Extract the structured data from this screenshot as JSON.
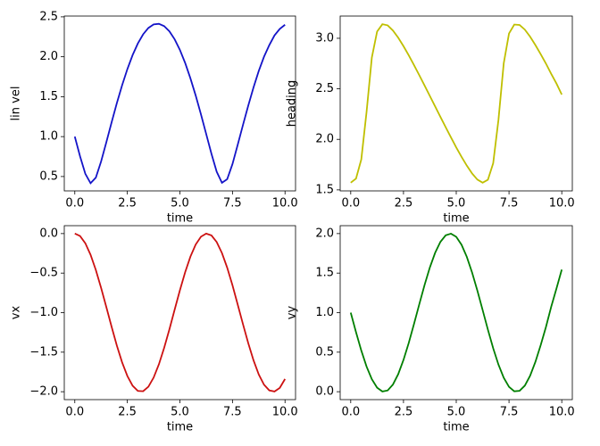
{
  "chart_data": [
    {
      "type": "line",
      "x_label": "time",
      "y_label": "lin vel",
      "color": "#1414c8",
      "x": [
        0,
        0.25,
        0.5,
        0.75,
        1,
        1.25,
        1.5,
        1.75,
        2,
        2.25,
        2.5,
        2.75,
        3,
        3.25,
        3.5,
        3.75,
        4,
        4.25,
        4.5,
        4.75,
        5,
        5.25,
        5.5,
        5.75,
        6,
        6.25,
        6.5,
        6.75,
        7,
        7.25,
        7.5,
        7.75,
        8,
        8.25,
        8.5,
        8.75,
        9,
        9.25,
        9.5,
        9.75,
        10
      ],
      "values": [
        1.0,
        0.753,
        0.535,
        0.416,
        0.486,
        0.687,
        0.929,
        1.178,
        1.419,
        1.643,
        1.845,
        2.021,
        2.167,
        2.281,
        2.361,
        2.405,
        2.413,
        2.384,
        2.319,
        2.219,
        2.086,
        1.922,
        1.73,
        1.515,
        1.28,
        1.033,
        0.785,
        0.56,
        0.422,
        0.467,
        0.656,
        0.898,
        1.146,
        1.387,
        1.615,
        1.822,
        2.0,
        2.145,
        2.268,
        2.349,
        2.401
      ],
      "xlim": [
        -0.5,
        10.5
      ],
      "ylim": [
        0.32,
        2.51
      ],
      "xticks": [
        {
          "value": 0,
          "label": "0.0"
        },
        2.5,
        {
          "value": 5,
          "label": "5.0"
        },
        7.5,
        {
          "value": 10,
          "label": "10.0"
        }
      ],
      "yticks": [
        0.5,
        {
          "value": 1,
          "label": "1.0"
        },
        1.5,
        {
          "value": 2,
          "label": "2.0"
        },
        2.5
      ]
    },
    {
      "type": "line",
      "x_label": "time",
      "y_label": "heading",
      "color": "#bfbf00",
      "x": [
        0,
        0.25,
        0.5,
        0.75,
        1,
        1.25,
        1.5,
        1.75,
        2,
        2.25,
        2.5,
        2.75,
        3,
        3.25,
        3.5,
        3.75,
        4,
        4.25,
        4.5,
        4.75,
        5,
        5.25,
        5.5,
        5.75,
        6,
        6.25,
        6.5,
        6.75,
        7,
        7.25,
        7.5,
        7.75,
        8,
        8.25,
        8.5,
        8.75,
        9,
        9.25,
        9.5,
        9.75,
        10
      ],
      "values": [
        1.571,
        1.612,
        1.801,
        2.271,
        2.809,
        3.067,
        3.139,
        3.128,
        3.077,
        3.006,
        2.922,
        2.831,
        2.734,
        2.634,
        2.532,
        2.429,
        2.326,
        2.222,
        2.12,
        2.019,
        1.92,
        1.827,
        1.74,
        1.663,
        1.602,
        1.571,
        1.6,
        1.763,
        2.193,
        2.752,
        3.047,
        3.136,
        3.132,
        3.086,
        3.016,
        2.933,
        2.843,
        2.75,
        2.648,
        2.552,
        2.443
      ],
      "xlim": [
        -0.5,
        10.5
      ],
      "ylim": [
        1.49,
        3.22
      ],
      "xticks": [
        {
          "value": 0,
          "label": "0.0"
        },
        2.5,
        {
          "value": 5,
          "label": "5.0"
        },
        7.5,
        {
          "value": 10,
          "label": "10.0"
        }
      ],
      "yticks": [
        1.5,
        {
          "value": 2,
          "label": "2.0"
        },
        2.5,
        {
          "value": 3,
          "label": "3.0"
        }
      ]
    },
    {
      "type": "line",
      "x_label": "time",
      "y_label": "vx",
      "color": "#cc1111",
      "x": [
        0,
        0.25,
        0.5,
        0.75,
        1,
        1.25,
        1.5,
        1.75,
        2,
        2.25,
        2.5,
        2.75,
        3,
        3.25,
        3.5,
        3.75,
        4,
        4.25,
        4.5,
        4.75,
        5,
        5.25,
        5.5,
        5.75,
        6,
        6.25,
        6.5,
        6.75,
        7,
        7.25,
        7.5,
        7.75,
        8,
        8.25,
        8.5,
        8.75,
        9,
        9.25,
        9.5,
        9.75,
        10
      ],
      "values": [
        0,
        -0.031,
        -0.122,
        -0.268,
        -0.46,
        -0.685,
        -0.929,
        -1.178,
        -1.416,
        -1.628,
        -1.801,
        -1.924,
        -1.99,
        -1.994,
        -1.937,
        -1.821,
        -1.654,
        -1.446,
        -1.211,
        -0.962,
        -0.716,
        -0.488,
        -0.291,
        -0.139,
        -0.04,
        0,
        -0.023,
        -0.107,
        -0.246,
        -0.432,
        -0.653,
        -0.898,
        -1.146,
        -1.385,
        -1.602,
        -1.782,
        -1.911,
        -1.983,
        -1.997,
        -1.952,
        -1.839
      ],
      "xlim": [
        -0.5,
        10.5
      ],
      "ylim": [
        -2.1,
        0.1
      ],
      "xticks": [
        {
          "value": 0,
          "label": "0.0"
        },
        2.5,
        {
          "value": 5,
          "label": "5.0"
        },
        7.5,
        {
          "value": 10,
          "label": "10.0"
        }
      ],
      "yticks": [
        {
          "value": -2,
          "label": "−2.0"
        },
        {
          "value": -1.5,
          "label": "−1.5"
        },
        {
          "value": -1,
          "label": "−1.0"
        },
        {
          "value": -0.5,
          "label": "−0.5"
        },
        {
          "value": 0,
          "label": "0.0"
        }
      ]
    },
    {
      "type": "line",
      "x_label": "time",
      "y_label": "vy",
      "color": "#007f00",
      "x": [
        0,
        0.25,
        0.5,
        0.75,
        1,
        1.25,
        1.5,
        1.75,
        2,
        2.25,
        2.5,
        2.75,
        3,
        3.25,
        3.5,
        3.75,
        4,
        4.25,
        4.5,
        4.75,
        5,
        5.25,
        5.5,
        5.75,
        6,
        6.25,
        6.5,
        6.75,
        7,
        7.25,
        7.5,
        7.75,
        8,
        8.25,
        8.5,
        8.75,
        9,
        9.25,
        9.5,
        9.75,
        10
      ],
      "values": [
        1,
        0.753,
        0.521,
        0.318,
        0.159,
        0.051,
        0.003,
        0.016,
        0.091,
        0.222,
        0.402,
        0.618,
        0.859,
        1.108,
        1.351,
        1.572,
        1.757,
        1.895,
        1.978,
        1.999,
        1.959,
        1.859,
        1.706,
        1.508,
        1.279,
        1.033,
        0.785,
        0.55,
        0.343,
        0.177,
        0.062,
        0.005,
        0.011,
        0.077,
        0.202,
        0.377,
        0.588,
        0.818,
        1.075,
        1.306,
        1.544
      ],
      "xlim": [
        -0.5,
        10.5
      ],
      "ylim": [
        -0.1,
        2.1
      ],
      "xticks": [
        {
          "value": 0,
          "label": "0.0"
        },
        2.5,
        {
          "value": 5,
          "label": "5.0"
        },
        7.5,
        {
          "value": 10,
          "label": "10.0"
        }
      ],
      "yticks": [
        {
          "value": 0,
          "label": "0.0"
        },
        0.5,
        {
          "value": 1,
          "label": "1.0"
        },
        1.5,
        {
          "value": 2,
          "label": "2.0"
        }
      ]
    }
  ]
}
